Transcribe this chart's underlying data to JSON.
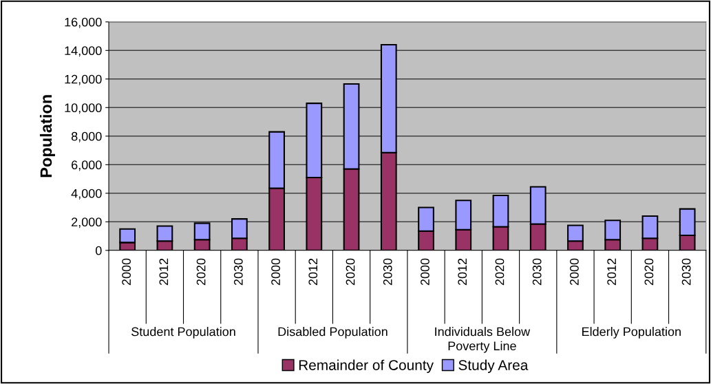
{
  "chart_data": {
    "type": "bar",
    "stacked": true,
    "ylabel": "Population",
    "categories": [
      "2000",
      "2012",
      "2020",
      "2030",
      "2000",
      "2012",
      "2020",
      "2030",
      "2000",
      "2012",
      "2020",
      "2030",
      "2000",
      "2012",
      "2020",
      "2030"
    ],
    "series": [
      {
        "name": "Remainder of County",
        "color": "#993366",
        "values": [
          550,
          650,
          750,
          850,
          4350,
          5100,
          5700,
          6850,
          1350,
          1450,
          1650,
          1850,
          650,
          750,
          850,
          1050
        ]
      },
      {
        "name": "Study Area",
        "color": "#9999ff",
        "values": [
          950,
          1050,
          1150,
          1350,
          3950,
          5200,
          5950,
          7550,
          1650,
          2050,
          2200,
          2600,
          1100,
          1350,
          1550,
          1850
        ]
      }
    ],
    "annotations": [
      "Student Population",
      "Disabled Population",
      "Individuals Below\nPoverty Line",
      "Elderly Population"
    ],
    "ylim": [
      0,
      16000
    ],
    "yticks": [
      {
        "value": 0,
        "label": "0"
      },
      {
        "value": 2000,
        "label": "2,000"
      },
      {
        "value": 4000,
        "label": "4,000"
      },
      {
        "value": 6000,
        "label": "6,000"
      },
      {
        "value": 8000,
        "label": "8,000"
      },
      {
        "value": 10000,
        "label": "10,000"
      },
      {
        "value": 12000,
        "label": "12,000"
      },
      {
        "value": 14000,
        "label": "14,000"
      },
      {
        "value": 16000,
        "label": "16,000"
      }
    ],
    "grid": "y",
    "legend": "bottom"
  }
}
